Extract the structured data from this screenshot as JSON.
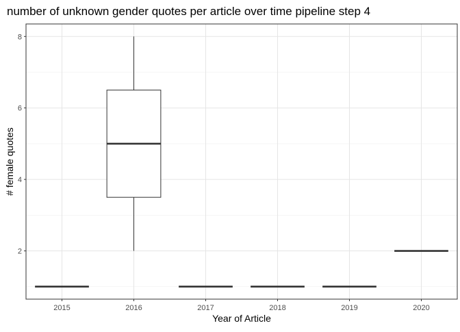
{
  "chart_data": {
    "type": "box",
    "title": "number of unknown gender quotes per article over time pipeline step 4",
    "xlabel": "Year of Article",
    "ylabel": "# female quotes",
    "categories": [
      "2015",
      "2016",
      "2017",
      "2018",
      "2019",
      "2020"
    ],
    "boxes": [
      {
        "category": "2015",
        "min": 1,
        "q1": 1,
        "median": 1,
        "q3": 1,
        "max": 1
      },
      {
        "category": "2016",
        "min": 2,
        "q1": 3.5,
        "median": 5,
        "q3": 6.5,
        "max": 8
      },
      {
        "category": "2017",
        "min": 1,
        "q1": 1,
        "median": 1,
        "q3": 1,
        "max": 1
      },
      {
        "category": "2018",
        "min": 1,
        "q1": 1,
        "median": 1,
        "q3": 1,
        "max": 1
      },
      {
        "category": "2019",
        "min": 1,
        "q1": 1,
        "median": 1,
        "q3": 1,
        "max": 1
      },
      {
        "category": "2020",
        "min": 2,
        "q1": 2,
        "median": 2,
        "q3": 2,
        "max": 2
      }
    ],
    "yticks": [
      2,
      4,
      6,
      8
    ],
    "ylim": [
      0.65,
      8.35
    ],
    "grid": true,
    "legend": "none"
  }
}
